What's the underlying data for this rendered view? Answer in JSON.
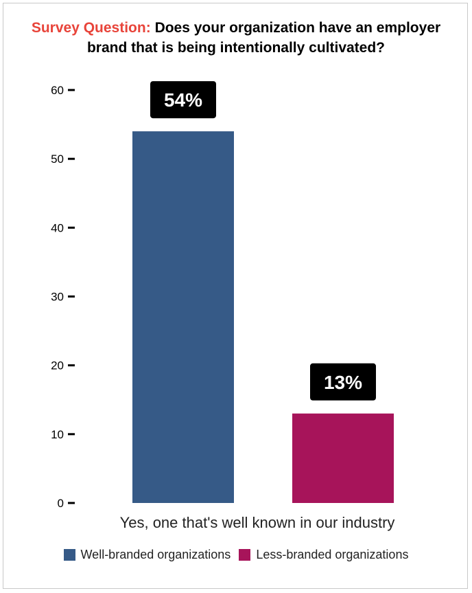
{
  "title": {
    "prefix": "Survey Question:",
    "line1": "Does your organization have an employer",
    "line2": "brand that is being intentionally cultivated?"
  },
  "chart_data": {
    "type": "bar",
    "categories": [
      "Yes, one that's well known in our industry"
    ],
    "series": [
      {
        "name": "Well-branded organizations",
        "values": [
          54
        ],
        "label": "54%",
        "color": "#365a87"
      },
      {
        "name": "Less-branded organizations",
        "values": [
          13
        ],
        "label": "13%",
        "color": "#a7145a"
      }
    ],
    "yticks": [
      0,
      10,
      20,
      30,
      40,
      50,
      60
    ],
    "ylim": [
      0,
      60
    ],
    "grid": false,
    "legend_position": "bottom",
    "xlabel": "",
    "ylabel": ""
  }
}
